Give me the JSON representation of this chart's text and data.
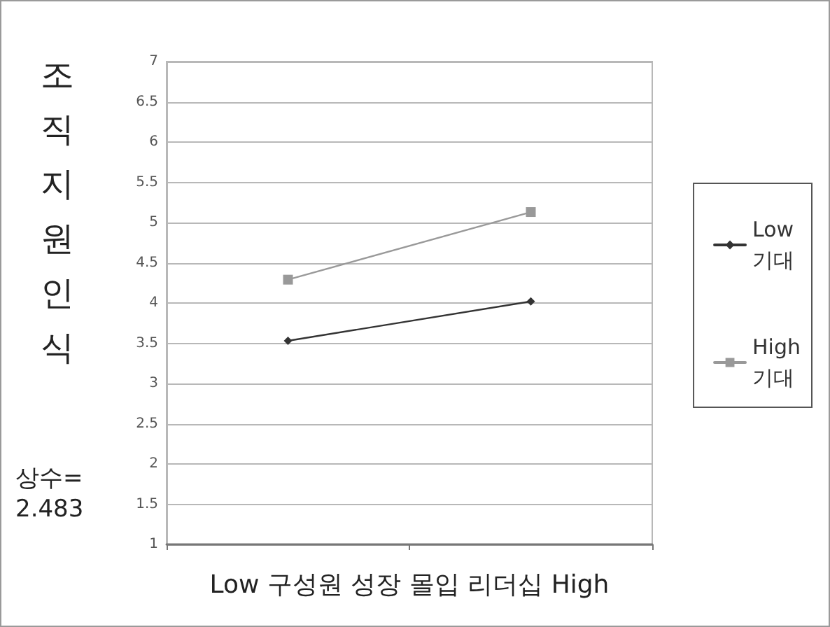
{
  "chart_data": {
    "type": "line",
    "xlabel": "Low 구성원 성장 몰입 리더십 High",
    "ylabel": "조직지원인식",
    "annotations": [
      "상수= 2.483"
    ],
    "categories": [
      null,
      null
    ],
    "series": [
      {
        "name": "Low 기대",
        "color": "#333333",
        "marker": "diamond",
        "values": [
          3.53,
          4.02
        ]
      },
      {
        "name": "High 기대",
        "color": "#999999",
        "marker": "square",
        "values": [
          4.29,
          5.13
        ]
      }
    ],
    "ylim": [
      1,
      7
    ],
    "yticks": [
      1,
      1.5,
      2,
      2.5,
      3,
      3.5,
      4,
      4.5,
      5,
      5.5,
      6,
      6.5,
      7
    ],
    "grid": "y",
    "legend": "right",
    "line_style": "solid"
  }
}
